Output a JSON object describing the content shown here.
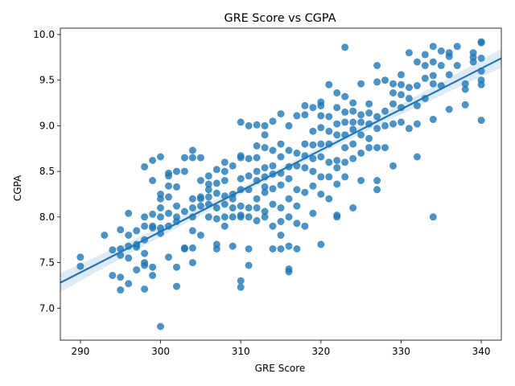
{
  "chart_data": {
    "type": "scatter",
    "title": "GRE Score vs CGPA",
    "xlabel": "GRE Score",
    "ylabel": "CGPA",
    "xlim": [
      287.5,
      342.5
    ],
    "ylim": [
      6.65,
      10.07
    ],
    "xticks": [
      "290",
      "300",
      "310",
      "320",
      "330",
      "340"
    ],
    "yticks": [
      "7.0",
      "7.5",
      "8.0",
      "8.5",
      "9.0",
      "9.5",
      "10.0"
    ],
    "grid": false,
    "colors": {
      "points": "#1f77b4",
      "line": "#1f77b4",
      "band": "#1f77b4"
    },
    "regression": {
      "x": [
        287.5,
        342.5
      ],
      "y": [
        7.28,
        9.74
      ]
    },
    "points": [
      [
        290,
        7.56
      ],
      [
        290,
        7.46
      ],
      [
        293,
        7.8
      ],
      [
        294,
        7.36
      ],
      [
        294,
        7.64
      ],
      [
        295,
        7.2
      ],
      [
        295,
        7.34
      ],
      [
        295,
        7.58
      ],
      [
        295,
        7.86
      ],
      [
        295,
        7.65
      ],
      [
        296,
        7.8
      ],
      [
        296,
        8.04
      ],
      [
        296,
        7.68
      ],
      [
        296,
        7.55
      ],
      [
        296,
        7.27
      ],
      [
        297,
        7.7
      ],
      [
        297,
        7.85
      ],
      [
        297,
        7.67
      ],
      [
        297,
        7.42
      ],
      [
        298,
        7.21
      ],
      [
        298,
        7.47
      ],
      [
        298,
        7.5
      ],
      [
        298,
        7.6
      ],
      [
        298,
        7.75
      ],
      [
        298,
        7.9
      ],
      [
        298,
        8.0
      ],
      [
        298,
        8.55
      ],
      [
        299,
        7.36
      ],
      [
        299,
        7.45
      ],
      [
        299,
        7.88
      ],
      [
        299,
        7.9
      ],
      [
        299,
        8.03
      ],
      [
        299,
        8.4
      ],
      [
        299,
        8.62
      ],
      [
        300,
        6.8
      ],
      [
        300,
        7.82
      ],
      [
        300,
        7.88
      ],
      [
        300,
        8.0
      ],
      [
        300,
        8.1
      ],
      [
        300,
        8.2
      ],
      [
        300,
        8.25
      ],
      [
        300,
        8.66
      ],
      [
        301,
        7.56
      ],
      [
        301,
        7.9
      ],
      [
        301,
        8.04
      ],
      [
        301,
        8.22
      ],
      [
        301,
        8.34
      ],
      [
        301,
        8.45
      ],
      [
        301,
        8.48
      ],
      [
        302,
        7.24
      ],
      [
        302,
        7.45
      ],
      [
        302,
        7.95
      ],
      [
        302,
        8.0
      ],
      [
        302,
        8.12
      ],
      [
        302,
        8.33
      ],
      [
        302,
        8.5
      ],
      [
        303,
        7.65
      ],
      [
        303,
        7.66
      ],
      [
        303,
        8.06
      ],
      [
        303,
        8.5
      ],
      [
        303,
        8.65
      ],
      [
        304,
        7.5
      ],
      [
        304,
        7.66
      ],
      [
        304,
        7.85
      ],
      [
        304,
        8.0
      ],
      [
        304,
        8.1
      ],
      [
        304,
        8.2
      ],
      [
        304,
        8.73
      ],
      [
        304,
        8.65
      ],
      [
        305,
        7.8
      ],
      [
        305,
        8.2
      ],
      [
        305,
        8.12
      ],
      [
        305,
        8.22
      ],
      [
        305,
        8.4
      ],
      [
        305,
        8.65
      ],
      [
        306,
        8.0
      ],
      [
        306,
        8.14
      ],
      [
        306,
        8.22
      ],
      [
        306,
        8.3
      ],
      [
        306,
        8.45
      ],
      [
        306,
        8.36
      ],
      [
        307,
        7.65
      ],
      [
        307,
        7.7
      ],
      [
        307,
        7.98
      ],
      [
        307,
        8.1
      ],
      [
        307,
        8.26
      ],
      [
        307,
        8.37
      ],
      [
        307,
        8.52
      ],
      [
        308,
        7.9
      ],
      [
        308,
        8.0
      ],
      [
        308,
        8.14
      ],
      [
        308,
        8.23
      ],
      [
        308,
        8.4
      ],
      [
        308,
        8.5
      ],
      [
        308,
        8.6
      ],
      [
        309,
        7.68
      ],
      [
        309,
        8.0
      ],
      [
        309,
        8.1
      ],
      [
        309,
        8.2
      ],
      [
        309,
        8.25
      ],
      [
        309,
        8.56
      ],
      [
        310,
        7.23
      ],
      [
        310,
        7.3
      ],
      [
        310,
        8.0
      ],
      [
        310,
        8.02
      ],
      [
        310,
        8.12
      ],
      [
        310,
        8.3
      ],
      [
        310,
        8.42
      ],
      [
        310,
        8.65
      ],
      [
        310,
        8.67
      ],
      [
        310,
        9.04
      ],
      [
        311,
        7.47
      ],
      [
        311,
        7.65
      ],
      [
        311,
        8.0
      ],
      [
        311,
        8.1
      ],
      [
        311,
        8.3
      ],
      [
        311,
        8.45
      ],
      [
        311,
        8.64
      ],
      [
        311,
        9.0
      ],
      [
        312,
        7.96
      ],
      [
        312,
        8.1
      ],
      [
        312,
        8.2
      ],
      [
        312,
        8.4
      ],
      [
        312,
        8.5
      ],
      [
        312,
        8.65
      ],
      [
        312,
        8.78
      ],
      [
        312,
        9.01
      ],
      [
        313,
        8.0
      ],
      [
        313,
        8.06
      ],
      [
        313,
        8.27
      ],
      [
        313,
        8.33
      ],
      [
        313,
        8.44
      ],
      [
        313,
        8.54
      ],
      [
        313,
        8.76
      ],
      [
        313,
        8.9
      ],
      [
        313,
        9.0
      ],
      [
        314,
        7.65
      ],
      [
        314,
        7.9
      ],
      [
        314,
        8.14
      ],
      [
        314,
        8.31
      ],
      [
        314,
        8.47
      ],
      [
        314,
        8.56
      ],
      [
        314,
        8.73
      ],
      [
        314,
        9.05
      ],
      [
        315,
        7.65
      ],
      [
        315,
        7.8
      ],
      [
        315,
        7.95
      ],
      [
        315,
        8.1
      ],
      [
        315,
        8.35
      ],
      [
        315,
        8.48
      ],
      [
        315,
        8.66
      ],
      [
        315,
        8.8
      ],
      [
        315,
        9.13
      ],
      [
        316,
        7.4
      ],
      [
        316,
        7.43
      ],
      [
        316,
        7.68
      ],
      [
        316,
        8.0
      ],
      [
        316,
        8.2
      ],
      [
        316,
        8.42
      ],
      [
        316,
        8.55
      ],
      [
        316,
        8.73
      ],
      [
        316,
        9.0
      ],
      [
        317,
        7.65
      ],
      [
        317,
        7.93
      ],
      [
        317,
        8.12
      ],
      [
        317,
        8.3
      ],
      [
        317,
        8.56
      ],
      [
        317,
        8.7
      ],
      [
        317,
        9.11
      ],
      [
        318,
        7.9
      ],
      [
        318,
        8.27
      ],
      [
        318,
        8.54
      ],
      [
        318,
        8.67
      ],
      [
        318,
        8.8
      ],
      [
        318,
        9.22
      ],
      [
        318,
        9.12
      ],
      [
        319,
        8.04
      ],
      [
        319,
        8.34
      ],
      [
        319,
        8.5
      ],
      [
        319,
        8.64
      ],
      [
        319,
        8.79
      ],
      [
        319,
        8.94
      ],
      [
        319,
        9.2
      ],
      [
        320,
        7.7
      ],
      [
        320,
        8.25
      ],
      [
        320,
        8.44
      ],
      [
        320,
        8.66
      ],
      [
        320,
        8.8
      ],
      [
        320,
        8.98
      ],
      [
        320,
        9.11
      ],
      [
        320,
        9.22
      ],
      [
        320,
        9.26
      ],
      [
        321,
        8.2
      ],
      [
        321,
        8.44
      ],
      [
        321,
        8.6
      ],
      [
        321,
        8.8
      ],
      [
        321,
        8.94
      ],
      [
        321,
        9.1
      ],
      [
        321,
        9.45
      ],
      [
        322,
        8.0
      ],
      [
        322,
        8.02
      ],
      [
        322,
        8.36
      ],
      [
        322,
        8.54
      ],
      [
        322,
        8.62
      ],
      [
        322,
        8.9
      ],
      [
        322,
        9.02
      ],
      [
        322,
        9.2
      ],
      [
        322,
        9.36
      ],
      [
        323,
        8.44
      ],
      [
        323,
        8.6
      ],
      [
        323,
        8.76
      ],
      [
        323,
        8.9
      ],
      [
        323,
        9.04
      ],
      [
        323,
        9.15
      ],
      [
        323,
        9.32
      ],
      [
        323,
        9.86
      ],
      [
        324,
        8.1
      ],
      [
        324,
        8.64
      ],
      [
        324,
        8.8
      ],
      [
        324,
        8.96
      ],
      [
        324,
        9.04
      ],
      [
        324,
        9.16
      ],
      [
        324,
        9.25
      ],
      [
        325,
        8.4
      ],
      [
        325,
        8.7
      ],
      [
        325,
        8.9
      ],
      [
        325,
        9.04
      ],
      [
        325,
        9.12
      ],
      [
        325,
        9.46
      ],
      [
        326,
        8.76
      ],
      [
        326,
        8.86
      ],
      [
        326,
        9.02
      ],
      [
        326,
        9.14
      ],
      [
        326,
        9.24
      ],
      [
        327,
        8.3
      ],
      [
        327,
        8.4
      ],
      [
        327,
        8.76
      ],
      [
        327,
        8.97
      ],
      [
        327,
        9.1
      ],
      [
        327,
        9.48
      ],
      [
        327,
        9.66
      ],
      [
        328,
        8.76
      ],
      [
        328,
        9.0
      ],
      [
        328,
        9.16
      ],
      [
        328,
        9.5
      ],
      [
        329,
        8.56
      ],
      [
        329,
        9.02
      ],
      [
        329,
        9.24
      ],
      [
        329,
        9.36
      ],
      [
        329,
        9.46
      ],
      [
        330,
        9.04
      ],
      [
        330,
        9.2
      ],
      [
        330,
        9.34
      ],
      [
        330,
        9.45
      ],
      [
        330,
        9.56
      ],
      [
        331,
        8.97
      ],
      [
        331,
        9.3
      ],
      [
        331,
        9.42
      ],
      [
        331,
        9.8
      ],
      [
        332,
        8.66
      ],
      [
        332,
        9.02
      ],
      [
        332,
        9.22
      ],
      [
        332,
        9.44
      ],
      [
        332,
        9.7
      ],
      [
        333,
        9.3
      ],
      [
        333,
        9.52
      ],
      [
        333,
        9.66
      ],
      [
        333,
        9.78
      ],
      [
        334,
        8.0
      ],
      [
        334,
        9.07
      ],
      [
        334,
        9.46
      ],
      [
        334,
        9.55
      ],
      [
        334,
        9.7
      ],
      [
        334,
        9.87
      ],
      [
        335,
        9.44
      ],
      [
        335,
        9.66
      ],
      [
        335,
        9.82
      ],
      [
        336,
        9.18
      ],
      [
        336,
        9.56
      ],
      [
        336,
        9.76
      ],
      [
        336,
        9.8
      ],
      [
        337,
        9.66
      ],
      [
        337,
        9.87
      ],
      [
        338,
        9.23
      ],
      [
        338,
        9.4
      ],
      [
        338,
        9.46
      ],
      [
        339,
        9.7
      ],
      [
        339,
        9.75
      ],
      [
        339,
        9.8
      ],
      [
        340,
        9.06
      ],
      [
        340,
        9.45
      ],
      [
        340,
        9.5
      ],
      [
        340,
        9.6
      ],
      [
        340,
        9.74
      ],
      [
        340,
        9.91
      ],
      [
        340,
        9.92
      ]
    ]
  }
}
